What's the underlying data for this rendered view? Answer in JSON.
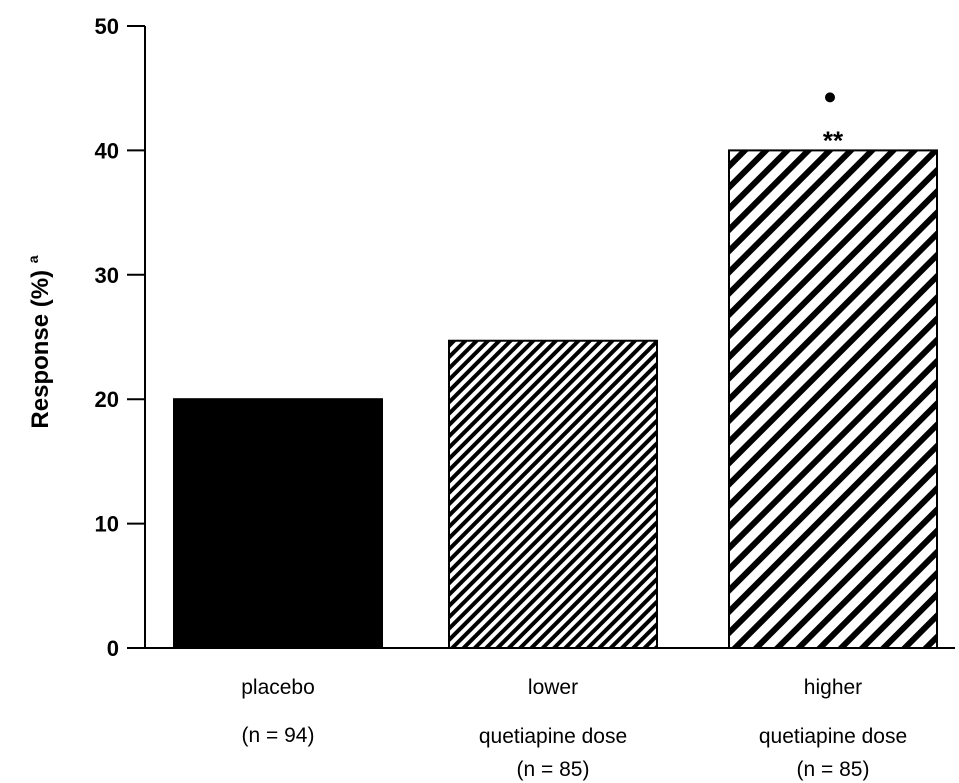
{
  "chart_data": {
    "type": "bar",
    "ylabel": "Response (%)",
    "ylabel_superscript": "a",
    "ylim": [
      0,
      50
    ],
    "yticks": [
      "0",
      "10",
      "20",
      "30",
      "40",
      "50"
    ],
    "grid": false,
    "categories": [
      {
        "lines": [
          "placebo",
          "(n = 94)"
        ],
        "value": 20,
        "pattern": "solid",
        "annotation": "",
        "marker": false
      },
      {
        "lines": [
          "lower",
          "quetiapine dose",
          "(n = 85)"
        ],
        "value": 24.7,
        "pattern": "fine-hatch",
        "annotation": "",
        "marker": false
      },
      {
        "lines": [
          "higher",
          "quetiapine dose",
          "(n = 85)"
        ],
        "value": 40,
        "pattern": "coarse-hatch",
        "annotation": "**",
        "marker": true
      }
    ]
  },
  "colors": {
    "bar_fill": "#000000",
    "background": "#ffffff",
    "axis": "#000000"
  }
}
